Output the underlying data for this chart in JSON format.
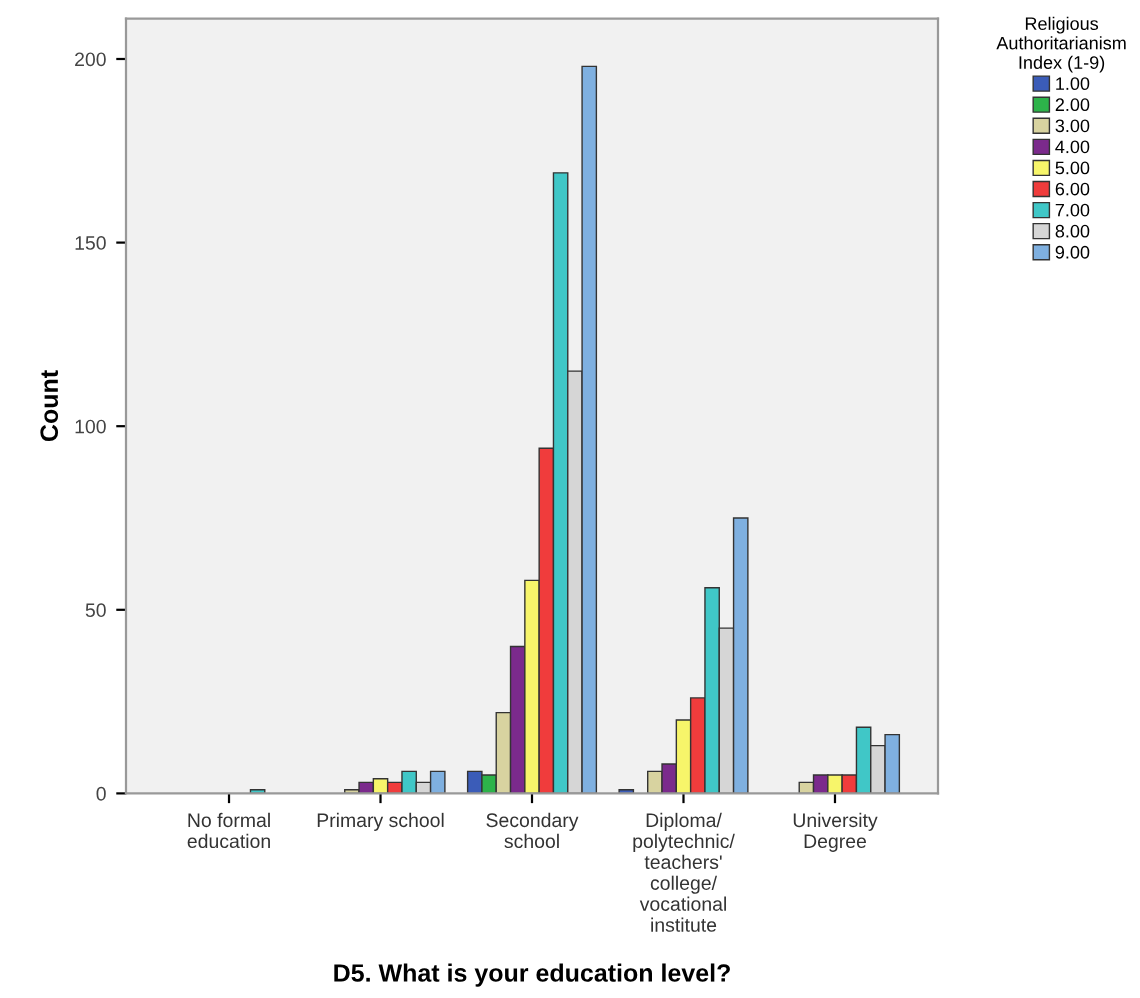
{
  "chart_data": {
    "type": "bar",
    "xlabel": "D5. What is your education level?",
    "ylabel": "Count",
    "legend_title": "Religious\nAuthoritarianism\nIndex (1-9)",
    "categories": [
      "No formal\neducation",
      "Primary school",
      "Secondary\nschool",
      "Diploma/\npolytechnic/\nteachers'\ncollege/\nvocational\ninstitute",
      "University\nDegree"
    ],
    "series": [
      {
        "name": "1.00",
        "color": "#3b5cb8",
        "values": [
          null,
          null,
          6,
          1,
          null
        ]
      },
      {
        "name": "2.00",
        "color": "#2db34a",
        "values": [
          null,
          null,
          5,
          null,
          null
        ]
      },
      {
        "name": "3.00",
        "color": "#d8d3a0",
        "values": [
          null,
          1,
          22,
          6,
          3
        ]
      },
      {
        "name": "4.00",
        "color": "#7b2a8c",
        "values": [
          null,
          3,
          40,
          8,
          5
        ]
      },
      {
        "name": "5.00",
        "color": "#f7f56a",
        "values": [
          null,
          4,
          58,
          20,
          5
        ]
      },
      {
        "name": "6.00",
        "color": "#f03c3c",
        "values": [
          null,
          3,
          94,
          26,
          5
        ]
      },
      {
        "name": "7.00",
        "color": "#40c7c7",
        "values": [
          1,
          6,
          169,
          56,
          18
        ]
      },
      {
        "name": "8.00",
        "color": "#d6d6d6",
        "values": [
          null,
          3,
          115,
          45,
          13
        ]
      },
      {
        "name": "9.00",
        "color": "#7fb0e0",
        "values": [
          null,
          6,
          198,
          75,
          16
        ]
      }
    ],
    "ylim": [
      0,
      211
    ],
    "yticks": [
      0,
      50,
      100,
      150,
      200
    ],
    "grid": false,
    "legend": "right"
  }
}
